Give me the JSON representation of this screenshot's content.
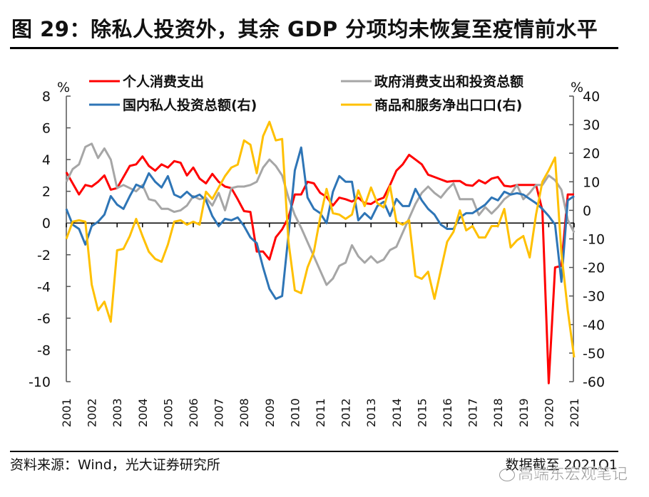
{
  "header": {
    "title": "图 29：除私人投资外，其余 GDP 分项均未恢复至疫情前水平"
  },
  "footer": {
    "source": "资料来源：Wind，光大证券研究所",
    "cutoff": "数据截至 2021Q1",
    "watermark": "高端东宏观笔记"
  },
  "chart_data": {
    "type": "line",
    "title": "图 29：除私人投资外，其余 GDP 分项均未恢复至疫情前水平",
    "xlabel": "",
    "ylabel": "%",
    "y2label": "%",
    "ylim": [
      -10,
      8
    ],
    "y2lim": [
      -60,
      40
    ],
    "yticks": [
      "8",
      "6",
      "4",
      "2",
      "0",
      "-2",
      "-4",
      "-6",
      "-8",
      "-10"
    ],
    "y2ticks": [
      "40",
      "30",
      "20",
      "10",
      "0",
      "-10",
      "-20",
      "-30",
      "-40",
      "-50",
      "-60"
    ],
    "x_frequency": "quarterly",
    "x_start": "2001Q1",
    "x_end": "2021Q1",
    "categories": [
      "2001",
      "2002",
      "2003",
      "2004",
      "2005",
      "2006",
      "2007",
      "2008",
      "2009",
      "2010",
      "2011",
      "2012",
      "2013",
      "2014",
      "2015",
      "2016",
      "2017",
      "2018",
      "2019",
      "2020",
      "2021"
    ],
    "legend": "top",
    "grid": false,
    "series": [
      {
        "name": "个人消费支出",
        "axis": "left",
        "color": "#FF0000",
        "values": [
          3.2,
          2.5,
          1.8,
          2.4,
          2.3,
          2.6,
          3.0,
          2.1,
          2.2,
          2.9,
          3.6,
          3.7,
          4.2,
          3.6,
          3.3,
          3.7,
          3.5,
          3.9,
          3.8,
          3.0,
          3.5,
          2.8,
          2.5,
          3.1,
          2.6,
          2.3,
          2.2,
          1.5,
          0.75,
          0.7,
          -1.8,
          -1.8,
          -2.3,
          -0.9,
          -0.4,
          0.35,
          1.8,
          1.8,
          2.6,
          2.5,
          1.9,
          1.65,
          1.1,
          1.6,
          1.5,
          1.35,
          1.6,
          1.25,
          1.2,
          1.45,
          1.6,
          2.4,
          3.3,
          3.7,
          4.3,
          4.0,
          3.7,
          3.05,
          2.9,
          2.75,
          2.6,
          2.65,
          2.65,
          2.4,
          2.35,
          2.7,
          2.5,
          2.8,
          2.9,
          2.35,
          2.3,
          2.4,
          2.4,
          2.4,
          2.4,
          0.8,
          -10.1,
          -2.8,
          -2.7,
          1.8,
          1.8
        ]
      },
      {
        "name": "政府消费支出和投资总额",
        "axis": "left",
        "color": "#A6A6A6",
        "values": [
          2.6,
          3.4,
          3.7,
          4.8,
          5.0,
          4.1,
          4.7,
          4.0,
          2.2,
          2.4,
          2.2,
          2.0,
          2.4,
          1.5,
          1.4,
          0.9,
          0.9,
          0.7,
          0.8,
          1.1,
          1.7,
          1.5,
          1.6,
          1.1,
          1.9,
          0.8,
          2.2,
          2.3,
          2.3,
          2.4,
          2.6,
          3.5,
          4.0,
          3.6,
          3.0,
          1.6,
          0.5,
          -0.3,
          -1.2,
          -2.1,
          -3.0,
          -3.9,
          -3.5,
          -2.7,
          -2.5,
          -1.4,
          -2.1,
          -2.5,
          -2.1,
          -2.5,
          -2.3,
          -1.7,
          -1.5,
          -0.6,
          0.3,
          1.2,
          1.9,
          2.3,
          1.9,
          1.6,
          2.1,
          2.5,
          1.5,
          1.5,
          1.5,
          0.5,
          1.0,
          0.6,
          1.0,
          1.5,
          1.8,
          2.4,
          1.5,
          1.9,
          2.4,
          2.4,
          3.0,
          2.7,
          2.1,
          0.2,
          -0.6
        ]
      },
      {
        "name": "国内私人投资总额(右)",
        "axis": "right",
        "color": "#2E75B6",
        "values": [
          0.5,
          -5.0,
          -6.5,
          -12.0,
          -5.5,
          -4.0,
          -1.5,
          5.0,
          2.0,
          0.5,
          5.0,
          9.0,
          8.0,
          13.0,
          10.0,
          8.0,
          12.0,
          5.5,
          4.5,
          6.5,
          4.5,
          5.5,
          3.5,
          -2.0,
          -5.5,
          -3.0,
          -3.5,
          -2.5,
          -5.5,
          -9.5,
          -11.5,
          -20.0,
          -27.5,
          -31.0,
          -30.0,
          -8.5,
          14.0,
          22.0,
          4.5,
          0.5,
          -1.0,
          -4.5,
          6.5,
          12.0,
          10.0,
          10.0,
          -3.5,
          -1.0,
          -3.0,
          1.5,
          3.0,
          -2.0,
          4.0,
          1.5,
          1.5,
          7.5,
          3.5,
          0.5,
          -1.5,
          -5.0,
          -6.5,
          -6.5,
          -2.5,
          -1.0,
          -1.0,
          0.5,
          2.0,
          4.5,
          3.5,
          6.5,
          5.5,
          6.0,
          5.5,
          4.0,
          2.5,
          0.5,
          -2.0,
          -5.0,
          -25.0,
          3.5,
          5.0
        ]
      },
      {
        "name": "商品和服务净出口口(右)",
        "axis": "right",
        "color": "#FFC000",
        "values": [
          -10.0,
          -4.0,
          -3.5,
          -4.0,
          -26.0,
          -35.0,
          -32.0,
          -39.0,
          -14.0,
          -13.5,
          -9.0,
          -3.0,
          -9.0,
          -14.5,
          -17.0,
          -18.0,
          -12.0,
          -4.0,
          -3.5,
          -5.0,
          -4.0,
          -5.0,
          6.5,
          4.0,
          8.0,
          12.0,
          15.0,
          16.0,
          24.5,
          23.0,
          13.0,
          26.0,
          31.0,
          24.5,
          25.0,
          -11.0,
          -28.0,
          -29.0,
          -20.0,
          -14.5,
          -2.5,
          7.5,
          -1.0,
          -1.5,
          -3.0,
          -1.5,
          7.0,
          1.5,
          8.0,
          2.5,
          1.0,
          8.5,
          -4.0,
          -5.0,
          -3.5,
          -23.0,
          -24.0,
          -21.5,
          -31.0,
          -21.0,
          -11.0,
          -7.5,
          0.0,
          -7.0,
          -5.5,
          -9.5,
          -9.5,
          -5.5,
          -5.5,
          0.5,
          -13.0,
          -10.5,
          -9.0,
          -16.5,
          -1.5,
          10.0,
          14.0,
          18.5,
          -15.0,
          -35.0,
          -51.5
        ]
      }
    ]
  }
}
